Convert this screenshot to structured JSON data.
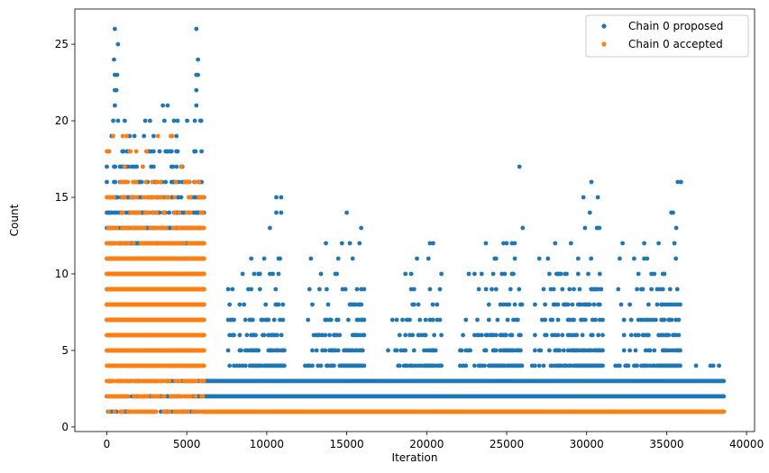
{
  "chart_data": {
    "type": "scatter",
    "title": "",
    "xlabel": "Iteration",
    "ylabel": "Count",
    "xlim": [
      -2000,
      40500
    ],
    "ylim": [
      -0.3,
      27.3
    ],
    "xticks": [
      0,
      5000,
      10000,
      15000,
      20000,
      25000,
      30000,
      35000,
      40000
    ],
    "yticks": [
      0,
      5,
      10,
      15,
      20,
      25
    ],
    "legend_position": "top-right",
    "grid": false,
    "series": [
      {
        "name": "Chain 0 proposed",
        "color": "#1f77b4",
        "segments": [
          {
            "x_range": [
              0,
              6100
            ],
            "step": 75,
            "levels": [
              [
                1,
                0.6
              ],
              [
                2,
                0.6
              ],
              [
                3,
                0.55
              ],
              [
                4,
                0.7
              ],
              [
                5,
                0.9
              ],
              [
                6,
                0.95
              ],
              [
                7,
                1.0
              ],
              [
                8,
                1.0
              ],
              [
                9,
                1.0
              ],
              [
                10,
                1.0
              ],
              [
                11,
                1.0
              ],
              [
                12,
                0.95
              ],
              [
                13,
                0.85
              ],
              [
                14,
                0.7
              ],
              [
                15,
                0.55
              ],
              [
                16,
                0.4
              ],
              [
                17,
                0.25
              ],
              [
                18,
                0.18
              ],
              [
                19,
                0.1
              ],
              [
                20,
                0.05
              ],
              [
                21,
                0.03
              ]
            ]
          },
          {
            "x_range": [
              6100,
              38600
            ],
            "step": 75,
            "levels": [
              [
                1,
                1.0
              ],
              [
                2,
                1.0
              ],
              [
                3,
                1.0
              ]
            ]
          },
          {
            "bursts": [
              {
                "from": 7500,
                "to": 11100,
                "peak": 10500,
                "h": [
                  [
                    4,
                    1.0
                  ],
                  [
                    5,
                    0.7
                  ],
                  [
                    6,
                    0.5
                  ],
                  [
                    7,
                    0.4
                  ],
                  [
                    8,
                    0.3
                  ],
                  [
                    9,
                    0.25
                  ],
                  [
                    10,
                    0.18
                  ],
                  [
                    11,
                    0.1
                  ],
                  [
                    12,
                    0.05
                  ]
                ]
              },
              {
                "from": 12400,
                "to": 16100,
                "peak": 15400,
                "h": [
                  [
                    4,
                    1.0
                  ],
                  [
                    5,
                    0.7
                  ],
                  [
                    6,
                    0.5
                  ],
                  [
                    7,
                    0.4
                  ],
                  [
                    8,
                    0.3
                  ],
                  [
                    9,
                    0.25
                  ],
                  [
                    10,
                    0.18
                  ],
                  [
                    11,
                    0.1
                  ],
                  [
                    12,
                    0.05
                  ]
                ]
              },
              {
                "from": 17500,
                "to": 21000,
                "peak": 20300,
                "h": [
                  [
                    4,
                    0.9
                  ],
                  [
                    5,
                    0.6
                  ],
                  [
                    6,
                    0.4
                  ],
                  [
                    7,
                    0.3
                  ],
                  [
                    8,
                    0.2
                  ],
                  [
                    9,
                    0.12
                  ],
                  [
                    10,
                    0.08
                  ],
                  [
                    11,
                    0.05
                  ]
                ]
              },
              {
                "from": 22000,
                "to": 26000,
                "peak": 25200,
                "h": [
                  [
                    4,
                    1.0
                  ],
                  [
                    5,
                    0.7
                  ],
                  [
                    6,
                    0.55
                  ],
                  [
                    7,
                    0.45
                  ],
                  [
                    8,
                    0.35
                  ],
                  [
                    9,
                    0.25
                  ],
                  [
                    10,
                    0.18
                  ],
                  [
                    11,
                    0.12
                  ],
                  [
                    12,
                    0.06
                  ]
                ]
              },
              {
                "from": 26500,
                "to": 31000,
                "peak": 30200,
                "h": [
                  [
                    4,
                    1.0
                  ],
                  [
                    5,
                    0.75
                  ],
                  [
                    6,
                    0.6
                  ],
                  [
                    7,
                    0.5
                  ],
                  [
                    8,
                    0.4
                  ],
                  [
                    9,
                    0.3
                  ],
                  [
                    10,
                    0.2
                  ],
                  [
                    11,
                    0.12
                  ],
                  [
                    12,
                    0.08
                  ],
                  [
                    13,
                    0.05
                  ]
                ]
              },
              {
                "from": 31800,
                "to": 35900,
                "peak": 35300,
                "h": [
                  [
                    4,
                    1.0
                  ],
                  [
                    5,
                    0.75
                  ],
                  [
                    6,
                    0.6
                  ],
                  [
                    7,
                    0.5
                  ],
                  [
                    8,
                    0.4
                  ],
                  [
                    9,
                    0.3
                  ],
                  [
                    10,
                    0.2
                  ],
                  [
                    11,
                    0.12
                  ],
                  [
                    12,
                    0.06
                  ]
                ]
              },
              {
                "from": 36300,
                "to": 38600,
                "peak": 37800,
                "h": [
                  [
                    4,
                    0.3
                  ],
                  [
                    5,
                    0.05
                  ]
                ]
              }
            ]
          },
          {
            "points": [
              [
                500,
                26
              ],
              [
                5600,
                26
              ],
              [
                700,
                25
              ],
              [
                450,
                24
              ],
              [
                5700,
                24
              ],
              [
                500,
                23
              ],
              [
                650,
                23
              ],
              [
                5600,
                23
              ],
              [
                5700,
                23
              ],
              [
                500,
                22
              ],
              [
                600,
                22
              ],
              [
                5600,
                22
              ],
              [
                500,
                21
              ],
              [
                3500,
                21
              ],
              [
                3800,
                21
              ],
              [
                5600,
                21
              ],
              [
                400,
                20
              ],
              [
                700,
                20
              ],
              [
                2400,
                20
              ],
              [
                3600,
                20
              ],
              [
                5500,
                20
              ],
              [
                5900,
                20
              ],
              [
                25800,
                17
              ],
              [
                30300,
                16
              ],
              [
                35700,
                16
              ],
              [
                35900,
                16
              ],
              [
                29800,
                15
              ],
              [
                10600,
                15
              ],
              [
                10900,
                15
              ],
              [
                30700,
                15
              ],
              [
                10600,
                14
              ],
              [
                15000,
                14
              ],
              [
                35300,
                14
              ],
              [
                35400,
                14
              ],
              [
                10900,
                14
              ],
              [
                30200,
                14
              ],
              [
                15900,
                13
              ],
              [
                26000,
                13
              ],
              [
                10200,
                13
              ],
              [
                29900,
                13
              ],
              [
                30700,
                13
              ],
              [
                30800,
                13
              ],
              [
                35600,
                13
              ],
              [
                13700,
                12
              ],
              [
                14700,
                12
              ],
              [
                15200,
                12
              ],
              [
                15800,
                12
              ],
              [
                20200,
                12
              ],
              [
                20400,
                12
              ],
              [
                23700,
                12
              ],
              [
                24800,
                12
              ],
              [
                25000,
                12
              ],
              [
                25500,
                12
              ],
              [
                33600,
                12
              ]
            ]
          }
        ]
      },
      {
        "name": "Chain 0 accepted",
        "color": "#ff7f0e",
        "segments": [
          {
            "x_range": [
              0,
              6100
            ],
            "step": 40,
            "levels": [
              [
                1,
                0.35
              ],
              [
                2,
                0.35
              ],
              [
                3,
                0.4
              ],
              [
                4,
                0.9
              ],
              [
                5,
                1.0
              ],
              [
                6,
                1.0
              ],
              [
                7,
                1.0
              ],
              [
                8,
                1.0
              ],
              [
                9,
                1.0
              ],
              [
                10,
                1.0
              ],
              [
                11,
                0.65
              ],
              [
                12,
                0.55
              ],
              [
                13,
                0.35
              ],
              [
                14,
                0.2
              ],
              [
                15,
                0.15
              ],
              [
                16,
                0.12
              ],
              [
                17,
                0.05
              ],
              [
                18,
                0.03
              ],
              [
                19,
                0.02
              ]
            ]
          },
          {
            "x_range": [
              6100,
              38600
            ],
            "step": 40,
            "levels": [
              [
                1,
                1.0
              ]
            ]
          }
        ]
      }
    ]
  }
}
